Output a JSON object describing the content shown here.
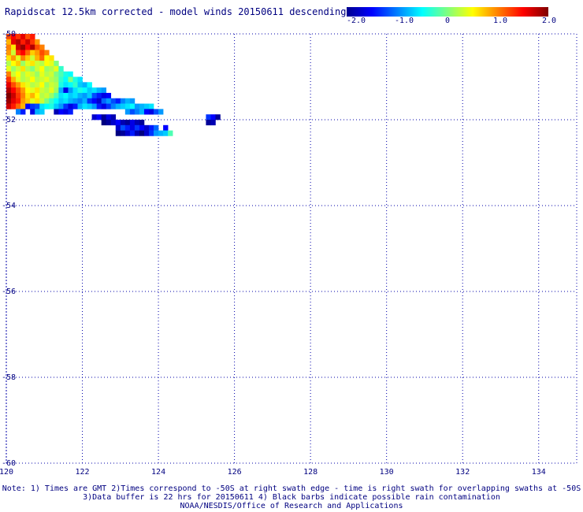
{
  "title": "Rapidscat 12.5km corrected - model winds 20150611 descending",
  "colorbar": {
    "ticks": [
      "-2.0",
      "-1.0",
      "0",
      "1.0",
      "2.0"
    ],
    "min": -2.0,
    "max": 2.0
  },
  "axes": {
    "x_ticks": [
      "120",
      "122",
      "124",
      "126",
      "128",
      "130",
      "132",
      "134"
    ],
    "y_ticks": [
      "-50",
      "-52",
      "-54",
      "-56",
      "-58",
      "-60"
    ],
    "lon_range": [
      120,
      135
    ],
    "lat_range": [
      -60,
      -50
    ],
    "grid": true
  },
  "notes": {
    "line1": "Note: 1) Times are GMT 2)Times correspond to -50S at right swath edge - time is right swath for overlapping swaths at -50S",
    "line2": "3)Data buffer is 22 hrs for 20150611 4) Black barbs indicate possible rain contamination",
    "line3": "NOAA/NESDIS/Office of Research and Applications"
  },
  "swath": {
    "cell_deg": 0.125,
    "rows": [
      {
        "lat": -50.0,
        "lon0": 120.0,
        "vals": [
          1.2,
          1.5,
          1.3,
          1.6,
          1.2,
          1.4
        ]
      },
      {
        "lat": -50.125,
        "lon0": 120.0,
        "vals": [
          0.8,
          1.6,
          1.8,
          1.4,
          1.7,
          1.3,
          0.9
        ]
      },
      {
        "lat": -50.25,
        "lon0": 120.0,
        "vals": [
          1.0,
          0.6,
          1.7,
          1.9,
          1.5,
          1.8,
          1.2,
          1.0
        ]
      },
      {
        "lat": -50.375,
        "lon0": 120.0,
        "vals": [
          0.9,
          0.3,
          1.3,
          1.5,
          1.1,
          0.7,
          0.9,
          1.2,
          1.0
        ]
      },
      {
        "lat": -50.5,
        "lon0": 120.0,
        "vals": [
          0.6,
          0.9,
          0.4,
          1.0,
          0.7,
          0.3,
          0.8,
          1.1,
          0.5,
          0.6
        ]
      },
      {
        "lat": -50.625,
        "lon0": 120.0,
        "vals": [
          0.2,
          0.5,
          0.7,
          0.1,
          0.4,
          0.6,
          0.3,
          0.2,
          0.5,
          0.4,
          0.0
        ]
      },
      {
        "lat": -50.75,
        "lon0": 120.0,
        "vals": [
          0.4,
          0.1,
          0.3,
          0.6,
          0.2,
          0.0,
          0.3,
          0.5,
          0.1,
          0.2,
          0.4,
          -0.3
        ]
      },
      {
        "lat": -50.875,
        "lon0": 120.0,
        "vals": [
          1.0,
          0.3,
          0.5,
          0.2,
          0.4,
          0.3,
          0.1,
          0.4,
          0.2,
          0.3,
          0.0,
          -0.2,
          -0.4,
          -0.5
        ]
      },
      {
        "lat": -51.0,
        "lon0": 120.0,
        "vals": [
          1.3,
          0.8,
          0.4,
          0.2,
          0.3,
          0.5,
          0.2,
          0.3,
          0.4,
          0.2,
          0.1,
          -0.3,
          -0.5,
          0.0,
          -0.4,
          -0.6
        ]
      },
      {
        "lat": -51.125,
        "lon0": 120.0,
        "vals": [
          1.6,
          1.2,
          0.9,
          0.6,
          0.4,
          0.2,
          0.3,
          0.5,
          0.1,
          0.3,
          0.2,
          -0.4,
          -0.6,
          -0.5,
          -0.3,
          -0.7,
          -0.8,
          -0.5
        ]
      },
      {
        "lat": -51.25,
        "lon0": 120.0,
        "vals": [
          1.8,
          1.5,
          1.2,
          0.9,
          0.5,
          0.4,
          0.6,
          0.3,
          0.2,
          0.4,
          0.1,
          -0.8,
          -1.6,
          -0.9,
          -0.6,
          -0.4,
          -0.5,
          -0.7,
          -0.6,
          -0.8,
          -0.9
        ]
      },
      {
        "lat": -51.375,
        "lon0": 120.0,
        "vals": [
          2.0,
          1.7,
          1.3,
          1.0,
          0.6,
          0.8,
          0.5,
          0.2,
          0.3,
          0.1,
          -0.2,
          -0.6,
          -0.5,
          -0.7,
          -0.6,
          -0.8,
          -0.9,
          -0.7,
          -1.2,
          -1.4,
          -1.6,
          -1.5
        ]
      },
      {
        "lat": -51.5,
        "lon0": 120.0,
        "vals": [
          1.9,
          1.6,
          1.4,
          0.9,
          0.7,
          0.4,
          0.6,
          0.3,
          0.0,
          -0.3,
          -0.5,
          -0.7,
          -0.6,
          -0.8,
          -0.9,
          -1.0,
          -0.8,
          -1.3,
          -1.5,
          -1.7,
          -1.1,
          -0.9,
          -1.2,
          -1.4,
          -1.0,
          -0.8,
          -0.9
        ]
      },
      {
        "lat": -51.625,
        "lon0": 120.0,
        "vals": [
          1.7,
          1.4,
          1.1,
          0.8,
          -1.5,
          -1.3,
          -1.2,
          -0.6,
          -0.5,
          -0.4,
          -0.7,
          -0.9,
          -1.3,
          -1.6,
          -1.4,
          -0.8,
          -0.6,
          -0.7,
          -0.9,
          -1.4,
          -1.6,
          -1.3,
          -1.0,
          -0.8,
          -0.7,
          -0.6,
          -0.5,
          -0.9,
          -0.8,
          -0.7,
          -0.6
        ]
      },
      {
        "lat": -51.75,
        "lon0": 120.25,
        "vals": [
          -1.0,
          -1.4,
          null,
          -1.6,
          -0.8,
          -0.7,
          null,
          null,
          -1.8,
          -1.5,
          -1.6,
          -1.4,
          null,
          null,
          null,
          null,
          null,
          null,
          null,
          null,
          null,
          null,
          null,
          -0.9,
          -1.2,
          -1.0,
          -0.8,
          -1.5,
          -1.6,
          -1.2,
          -0.9
        ]
      },
      {
        "lat": -51.875,
        "lon0": 120.0,
        "vals": [
          null,
          null,
          null,
          null,
          null,
          null,
          null,
          null,
          null,
          null,
          null,
          null,
          null,
          null,
          null,
          null,
          null,
          null,
          null,
          null,
          null,
          null,
          null,
          null,
          null,
          null,
          null,
          null,
          null,
          null,
          null,
          null,
          null,
          null,
          null,
          null,
          null,
          null,
          null,
          null,
          null,
          null,
          null,
          null,
          null,
          null,
          null,
          null,
          null,
          null,
          null,
          null,
          null,
          null,
          null,
          null,
          null,
          null,
          null,
          null,
          null,
          null,
          null,
          null,
          null,
          null,
          null,
          null,
          null,
          null,
          null,
          null,
          null,
          null,
          null,
          null,
          null,
          null,
          null,
          null,
          null,
          null,
          null,
          null,
          null,
          null,
          null,
          null,
          null,
          null,
          null,
          null,
          null,
          null,
          null,
          null,
          null,
          null,
          null,
          null,
          null,
          null,
          null,
          null,
          null,
          null,
          null,
          null,
          null,
          null,
          null,
          null,
          null,
          null,
          null,
          null,
          null,
          null,
          null,
          null,
          null,
          null,
          null,
          null,
          null,
          null,
          null,
          null,
          null,
          null,
          null,
          null,
          null,
          null,
          null,
          null,
          null,
          null,
          null,
          null,
          null,
          null,
          null,
          null,
          null,
          null,
          null,
          null,
          null,
          null,
          null,
          null,
          null,
          null,
          null,
          null,
          null,
          null,
          null,
          null,
          null,
          null,
          null,
          null,
          null,
          null,
          null,
          null,
          null,
          null,
          null,
          null,
          null,
          null,
          null,
          null,
          null,
          null,
          null,
          null,
          null,
          null,
          null,
          null,
          null,
          null,
          null,
          null,
          null,
          null,
          null,
          null,
          null,
          null,
          null,
          null,
          null,
          null,
          null,
          null,
          null,
          null,
          null,
          null,
          null,
          null,
          null,
          null,
          null,
          null,
          null,
          null,
          null,
          null,
          null,
          null,
          null,
          null,
          null,
          null,
          null,
          null,
          null,
          null,
          null,
          null,
          null,
          null,
          null,
          null,
          null,
          null,
          null,
          null,
          null,
          null,
          null,
          null,
          null,
          null,
          null,
          null,
          null,
          null
        ]
      },
      {
        "lat": -51.875,
        "lon0": 122.25,
        "vals": [
          -1.7,
          -1.5,
          -1.9,
          -1.6,
          -1.8,
          null,
          null,
          null,
          null,
          null,
          null,
          null,
          null,
          null,
          null,
          null,
          null,
          null,
          null,
          null,
          null,
          null,
          null,
          null,
          -1.3,
          -1.5,
          -1.9
        ]
      },
      {
        "lat": -52.0,
        "lon0": 122.5,
        "vals": [
          -2.0,
          -1.9,
          -1.7,
          -1.5,
          -1.8,
          -1.9,
          -1.6,
          -1.8,
          -1.9,
          null,
          null,
          null,
          null,
          null,
          null,
          null,
          null,
          null,
          null,
          null,
          null,
          null,
          -1.9,
          -1.8
        ]
      },
      {
        "lat": -52.125,
        "lon0": 122.5,
        "vals": [
          null,
          null,
          null,
          -1.7,
          -1.2,
          -1.4,
          -1.6,
          -1.3,
          -1.5,
          -1.7,
          -1.4,
          -1.1,
          null,
          -1.5
        ]
      },
      {
        "lat": -52.25,
        "lon0": 122.875,
        "vals": [
          -2.0,
          -1.9,
          -1.7,
          -1.4,
          -1.8,
          -2.0,
          -1.7,
          -1.3,
          -0.9,
          -0.8,
          -0.7,
          -0.2
        ]
      }
    ]
  }
}
